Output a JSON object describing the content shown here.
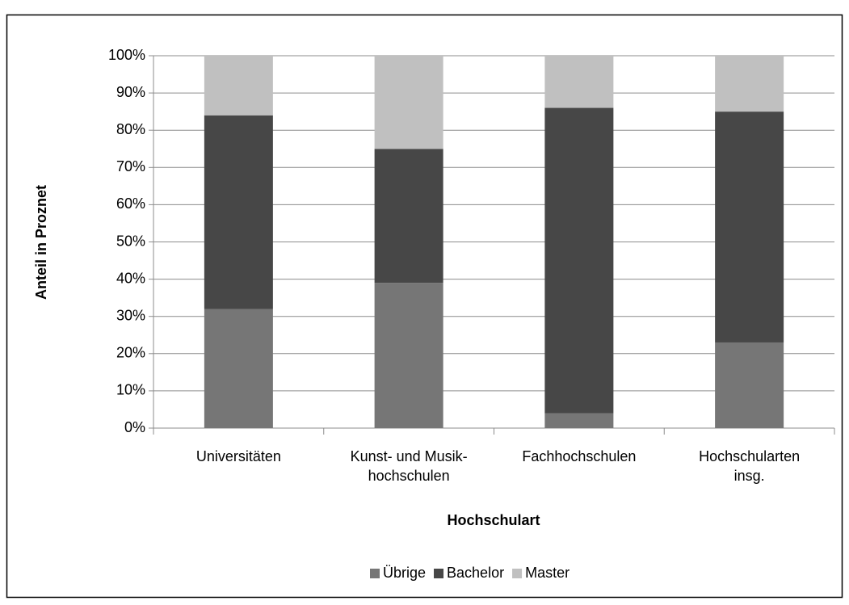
{
  "chart_data": {
    "type": "bar",
    "stacked": true,
    "ylabel": "Anteil in Proznet",
    "xlabel": "Hochschulart",
    "categories": [
      "Universitäten",
      "Kunst- und Musik-\nhochschulen",
      "Fachhochschulen",
      "Hochschularten\ninsg."
    ],
    "series": [
      {
        "name": "Übrige",
        "color": "#767676",
        "values": [
          32,
          39,
          4,
          23
        ]
      },
      {
        "name": "Bachelor",
        "color": "#474747",
        "values": [
          52,
          36,
          82,
          62
        ]
      },
      {
        "name": "Master",
        "color": "#c0c0c0",
        "values": [
          16,
          25,
          14,
          15
        ]
      }
    ],
    "ylim": [
      0,
      100
    ],
    "yticks": [
      {
        "value": 0,
        "label": "0%"
      },
      {
        "value": 10,
        "label": "10%"
      },
      {
        "value": 20,
        "label": "20%"
      },
      {
        "value": 30,
        "label": "30%"
      },
      {
        "value": 40,
        "label": "40%"
      },
      {
        "value": 50,
        "label": "50%"
      },
      {
        "value": 60,
        "label": "60%"
      },
      {
        "value": 70,
        "label": "70%"
      },
      {
        "value": 80,
        "label": "80%"
      },
      {
        "value": 90,
        "label": "90%"
      },
      {
        "value": 100,
        "label": "100%"
      }
    ],
    "grid": true,
    "legend": "bottom"
  }
}
